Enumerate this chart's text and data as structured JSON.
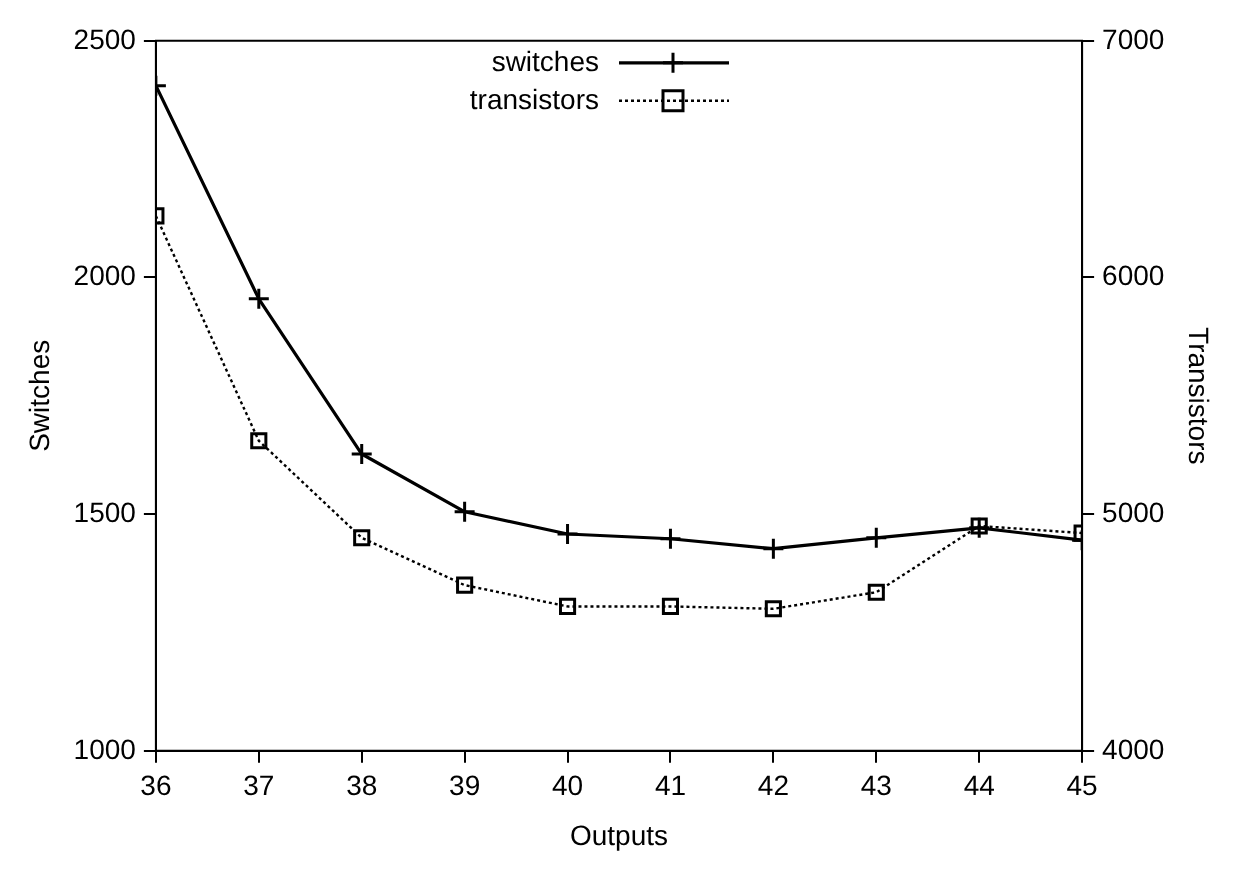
{
  "chart_data": {
    "type": "line",
    "xlabel": "Outputs",
    "ylabel": "Switches",
    "y2label": "Transistors",
    "x": [
      36,
      37,
      38,
      39,
      40,
      41,
      42,
      43,
      44,
      45
    ],
    "xlim": [
      36,
      45
    ],
    "xticks": [
      36,
      37,
      38,
      39,
      40,
      41,
      42,
      43,
      44,
      45
    ],
    "ylim": [
      1000,
      2500
    ],
    "yticks": [
      1000,
      1500,
      2000,
      2500
    ],
    "y2lim": [
      4000,
      7000
    ],
    "y2ticks": [
      4000,
      5000,
      6000,
      7000
    ],
    "grid": false,
    "legend": "top",
    "series": [
      {
        "name": "switches",
        "color": "#000000",
        "marker": "cross",
        "line_style": "solid",
        "values": [
          2405,
          1955,
          1627,
          1505,
          1458,
          1448,
          1427,
          1450,
          1471,
          1445
        ]
      },
      {
        "name": "transistors",
        "color": "#000000",
        "marker": "square",
        "line_style": "dotted",
        "axis": "y2",
        "values": [
          6260,
          5310,
          4900,
          4700,
          4610,
          4610,
          4600,
          4670,
          4950,
          4920
        ]
      }
    ]
  }
}
